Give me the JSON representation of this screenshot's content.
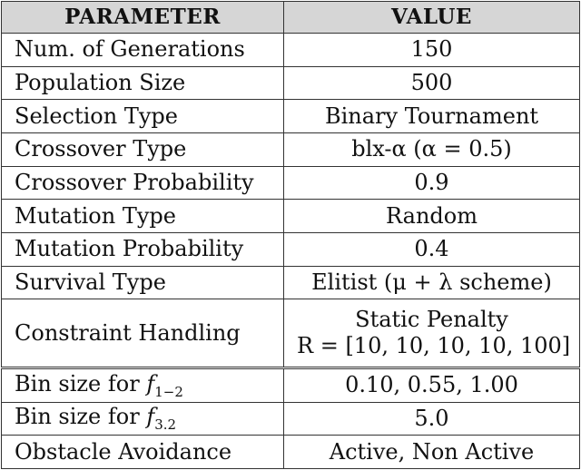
{
  "table": {
    "headers": [
      "PARAMETER",
      "VALUE"
    ],
    "rows": [
      {
        "param": "Num. of Generations",
        "value": "150"
      },
      {
        "param": "Population Size",
        "value": "500"
      },
      {
        "param": "Selection Type",
        "value": "Binary Tournament"
      },
      {
        "param": "Crossover Type",
        "value": "blx-α (α = 0.5)"
      },
      {
        "param": "Crossover Probability",
        "value": "0.9"
      },
      {
        "param": "Mutation Type",
        "value": "Random"
      },
      {
        "param": "Mutation Probability",
        "value": "0.4"
      },
      {
        "param": "Survival Type",
        "value": "Elitist (μ + λ scheme)"
      },
      {
        "param": "Constraint Handling",
        "value": "Static Penalty",
        "value2": "R = [10, 10, 10, 10, 100]"
      },
      {
        "param_prefix": "Bin size for ",
        "param_sym": "f",
        "param_sub": "1−2",
        "value": "0.10, 0.55, 1.00"
      },
      {
        "param_prefix": "Bin size for ",
        "param_sym": "f",
        "param_sub": "3.2",
        "value": "5.0"
      },
      {
        "param": "Obstacle Avoidance",
        "value": "Active, Non Active"
      }
    ]
  }
}
